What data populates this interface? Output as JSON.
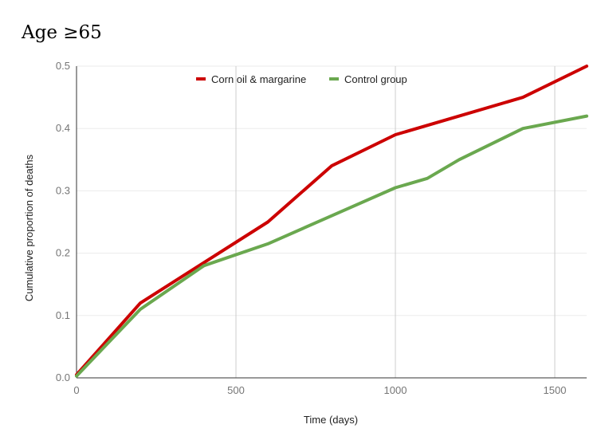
{
  "chart_data": {
    "type": "line",
    "title": "Age ≥65",
    "xlabel": "Time (days)",
    "ylabel": "Cumulative proportion of deaths",
    "xlim": [
      0,
      1600
    ],
    "ylim": [
      0,
      0.5
    ],
    "x_ticks": [
      0,
      500,
      1000,
      1500
    ],
    "x_tick_labels": [
      "0",
      "500",
      "1000",
      "1500"
    ],
    "y_ticks": [
      0,
      0.1,
      0.2,
      0.3,
      0.4,
      0.5
    ],
    "y_tick_labels": [
      "0.0",
      "0.1",
      "0.2",
      "0.3",
      "0.4",
      "0.5"
    ],
    "grid": true,
    "legend_position": "top",
    "series": [
      {
        "name": "Corn oil & margarine",
        "color": "#cc0000",
        "points": [
          {
            "x": 0,
            "y": 0.005
          },
          {
            "x": 200,
            "y": 0.12
          },
          {
            "x": 400,
            "y": 0.185
          },
          {
            "x": 600,
            "y": 0.25
          },
          {
            "x": 800,
            "y": 0.34
          },
          {
            "x": 1000,
            "y": 0.39
          },
          {
            "x": 1200,
            "y": 0.42
          },
          {
            "x": 1400,
            "y": 0.45
          },
          {
            "x": 1600,
            "y": 0.5
          }
        ]
      },
      {
        "name": "Control group",
        "color": "#6aa84f",
        "points": [
          {
            "x": 0,
            "y": 0.003
          },
          {
            "x": 200,
            "y": 0.11
          },
          {
            "x": 400,
            "y": 0.18
          },
          {
            "x": 600,
            "y": 0.215
          },
          {
            "x": 800,
            "y": 0.26
          },
          {
            "x": 1000,
            "y": 0.305
          },
          {
            "x": 1100,
            "y": 0.32
          },
          {
            "x": 1200,
            "y": 0.35
          },
          {
            "x": 1400,
            "y": 0.4
          },
          {
            "x": 1600,
            "y": 0.42
          }
        ]
      }
    ]
  }
}
